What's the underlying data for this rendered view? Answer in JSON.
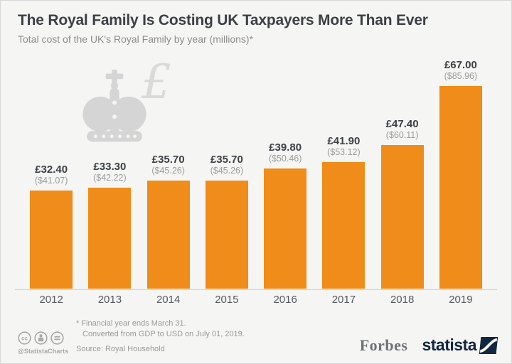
{
  "header": {
    "title": "The Royal Family Is Costing UK Taxpayers More Than Ever",
    "subtitle": "Total cost of the UK's Royal Family by year (millions)*"
  },
  "chart_data": {
    "type": "bar",
    "title": "The Royal Family Is Costing UK Taxpayers More Than Ever",
    "subtitle": "Total cost of the UK's Royal Family by year (millions)*",
    "categories": [
      "2012",
      "2013",
      "2014",
      "2015",
      "2016",
      "2017",
      "2018",
      "2019"
    ],
    "series": [
      {
        "name": "GBP (£ millions)",
        "values": [
          32.4,
          33.3,
          35.7,
          35.7,
          39.8,
          41.9,
          47.4,
          67.0
        ]
      },
      {
        "name": "USD ($ millions)",
        "values": [
          41.07,
          42.22,
          45.26,
          45.26,
          50.46,
          53.12,
          60.11,
          85.96
        ]
      }
    ],
    "bar_labels_gbp": [
      "£32.40",
      "£33.30",
      "£35.70",
      "£35.70",
      "£39.80",
      "£41.90",
      "£47.40",
      "£67.00"
    ],
    "bar_labels_usd": [
      "($41.07)",
      "($42.22)",
      "($45.26)",
      "($45.26)",
      "($50.46)",
      "($53.12)",
      "($60.11)",
      "($85.96)"
    ],
    "xlabel": "",
    "ylabel": "",
    "ylim": [
      0,
      67
    ],
    "grid": false,
    "legend": false,
    "bar_color": "#f08c19"
  },
  "watermark": {
    "crown_icon": "crown-icon",
    "pound_symbol": "£"
  },
  "footer": {
    "footnote_line1": "* Financial year ends March 31.",
    "footnote_line2": "Converted from GDP to USD on July 01, 2019.",
    "source": "Source: Royal Household",
    "credit": "@StatistaCharts",
    "license_icons": [
      "cc-icon",
      "cc-by-icon",
      "cc-nd-icon"
    ],
    "brands": {
      "forbes": "Forbes",
      "statista": "statista"
    }
  },
  "colors": {
    "background": "#f5f5f4",
    "bar": "#f08c19",
    "title_text": "#3c4044",
    "muted_text": "#9a9a9a",
    "watermark": "#d5d5d5",
    "statista_navy": "#11263f"
  }
}
